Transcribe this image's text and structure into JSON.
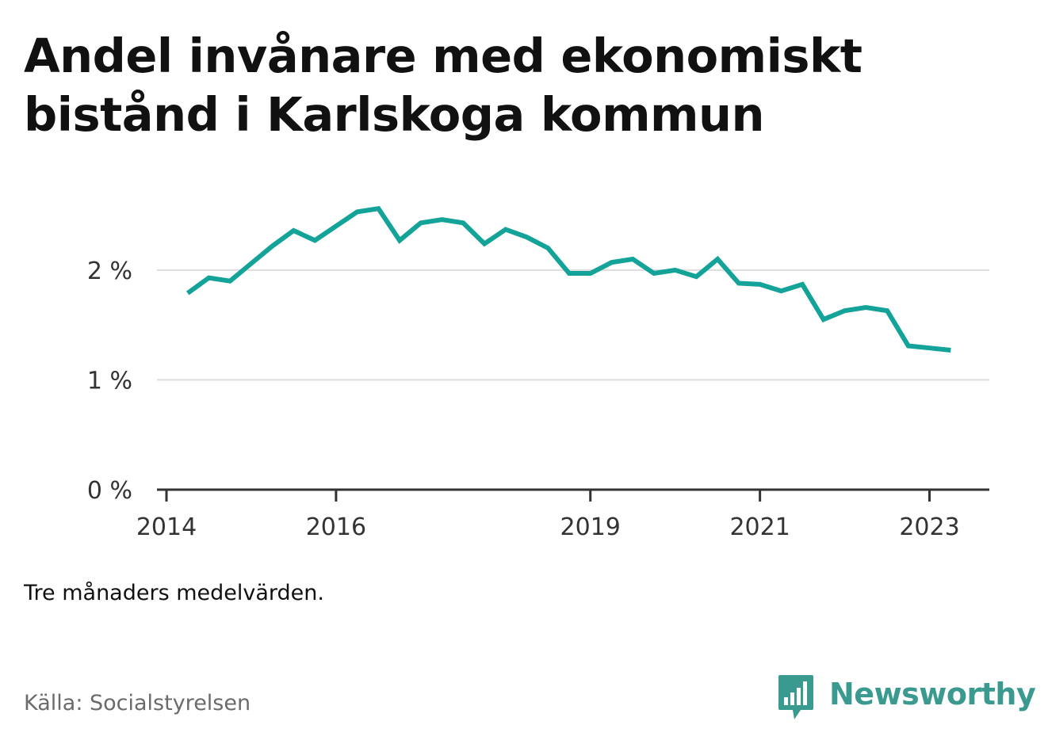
{
  "title": "Andel invånare med ekonomiskt bistånd i Karlskoga kommun",
  "note": "Tre månaders medelvärden.",
  "source": "Källa: Socialstyrelsen",
  "brand": {
    "name": "Newsworthy",
    "icon": "newsworthy-logo-icon",
    "color": "#3b9a8f"
  },
  "chart_data": {
    "type": "line",
    "title": "Andel invånare med ekonomiskt bistånd i Karlskoga kommun",
    "xlabel": "",
    "ylabel": "",
    "ylim": [
      0,
      2.8
    ],
    "xlim": [
      "2014-01",
      "2023-07"
    ],
    "grid": true,
    "legend": "none",
    "color": "#13a399",
    "y_ticks": [
      {
        "value": 0,
        "label": "0 %"
      },
      {
        "value": 1,
        "label": "1 %"
      },
      {
        "value": 2,
        "label": "2 %"
      }
    ],
    "x_ticks": [
      {
        "value": "2014-01",
        "label": "2014"
      },
      {
        "value": "2016-01",
        "label": "2016"
      },
      {
        "value": "2019-01",
        "label": "2019"
      },
      {
        "value": "2021-01",
        "label": "2021"
      },
      {
        "value": "2023-01",
        "label": "2023"
      }
    ],
    "series": [
      {
        "x": [
          "2014-04",
          "2014-07",
          "2014-10",
          "2015-01",
          "2015-04",
          "2015-07",
          "2015-10",
          "2016-01",
          "2016-04",
          "2016-07",
          "2016-10",
          "2017-01",
          "2017-04",
          "2017-07",
          "2017-10",
          "2018-01",
          "2018-04",
          "2018-07",
          "2018-10",
          "2019-01",
          "2019-04",
          "2019-07",
          "2019-10",
          "2020-01",
          "2020-04",
          "2020-07",
          "2020-10",
          "2021-01",
          "2021-04",
          "2021-07",
          "2021-10",
          "2022-01",
          "2022-04",
          "2022-07",
          "2022-10",
          "2023-01",
          "2023-04"
        ],
        "y": [
          1.79,
          1.93,
          1.9,
          2.06,
          2.22,
          2.36,
          2.27,
          2.4,
          2.53,
          2.56,
          2.27,
          2.43,
          2.46,
          2.43,
          2.24,
          2.37,
          2.3,
          2.2,
          1.97,
          1.97,
          2.07,
          2.1,
          1.97,
          2.0,
          1.94,
          2.1,
          1.88,
          1.87,
          1.81,
          1.87,
          1.55,
          1.63,
          1.66,
          1.63,
          1.31,
          1.29,
          1.27
        ]
      }
    ]
  }
}
